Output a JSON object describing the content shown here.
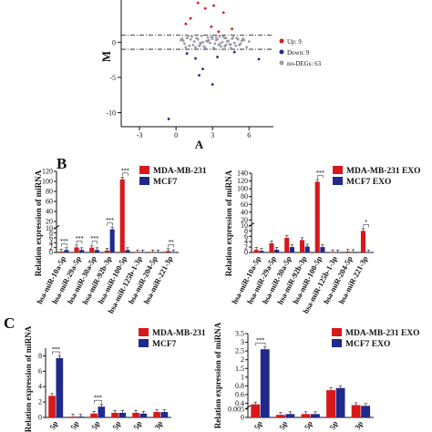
{
  "panel_letters": {
    "b": "B",
    "c": "C"
  },
  "colors": {
    "red": "#d7191c",
    "blue": "#1f2a8c",
    "gray": "#9a9aa8",
    "axis": "#111111"
  },
  "chart_data": [
    {
      "id": "ma",
      "type": "scatter",
      "xlabel": "A",
      "ylabel": "M",
      "xlim": [
        -4.5,
        8
      ],
      "ylim": [
        -12,
        6
      ],
      "xticks": [
        -3,
        0,
        3,
        6
      ],
      "yticks": [
        -10,
        -5,
        0
      ],
      "tick_labels_x": [
        "-3",
        "0",
        "3",
        "6"
      ],
      "tick_labels_y": [
        "-10",
        "-5",
        "0"
      ],
      "thresholds": [
        1,
        -1
      ],
      "legend": [
        "Up: 9",
        "Down: 9",
        "no-DEGs: 63"
      ],
      "series": [
        {
          "name": "Up: 9",
          "color": "#d7191c",
          "x": [
            1.8,
            2.4,
            3.1,
            3.9,
            1.2,
            0.8,
            2.9,
            4.6,
            3.5
          ],
          "y": [
            5.6,
            4.8,
            5.2,
            4.2,
            3.4,
            2.6,
            2.2,
            1.9,
            1.5
          ]
        },
        {
          "name": "Down: 9",
          "color": "#1f2a8c",
          "x": [
            0.9,
            1.6,
            2.2,
            3.4,
            4.8,
            6.8,
            1.9,
            3.0,
            -0.6
          ],
          "y": [
            -1.6,
            -2.3,
            -3.8,
            -2.1,
            -1.4,
            -2.4,
            -4.7,
            -6.0,
            -10.9
          ]
        },
        {
          "name": "no-DEGs: 63",
          "color": "#9a9aa8",
          "x": [
            0.4,
            0.7,
            0.9,
            1.1,
            1.3,
            1.5,
            1.6,
            1.8,
            2.0,
            2.1,
            2.3,
            2.5,
            2.6,
            2.8,
            3.0,
            3.1,
            3.3,
            3.5,
            3.6,
            3.8,
            4.0,
            4.1,
            4.3,
            4.5,
            4.7,
            4.9,
            5.1,
            5.3,
            5.5,
            5.8,
            6.0,
            0.6,
            1.0,
            1.4,
            1.7,
            2.2,
            2.4,
            2.7,
            2.9,
            3.2,
            3.4,
            3.7,
            3.9,
            4.2,
            4.4,
            4.6,
            4.8,
            5.0,
            5.2,
            5.6,
            0.8,
            1.2,
            1.9,
            2.6,
            3.0,
            3.6,
            4.0,
            4.5,
            5.4,
            0.5,
            2.0,
            3.3,
            4.1
          ],
          "y": [
            0.3,
            -0.2,
            0.6,
            -0.5,
            0.8,
            0.1,
            -0.7,
            0.4,
            -0.3,
            0.9,
            -0.6,
            0.2,
            0.7,
            -0.1,
            0.5,
            -0.8,
            0.3,
            -0.4,
            0.8,
            0.0,
            -0.6,
            0.6,
            0.2,
            -0.3,
            0.7,
            -0.5,
            0.4,
            -0.2,
            0.5,
            -0.7,
            0.1,
            0.2,
            0.9,
            -0.4,
            0.6,
            0.0,
            -0.8,
            0.3,
            0.7,
            -0.2,
            0.4,
            -0.6,
            0.8,
            0.1,
            -0.3,
            0.5,
            -0.1,
            0.6,
            -0.4,
            0.3,
            -0.7,
            0.4,
            -0.5,
            0.1,
            0.9,
            -0.2,
            0.6,
            -0.8,
            0.2,
            0.5,
            -0.1,
            0.7,
            -0.4
          ]
        }
      ]
    },
    {
      "id": "b_left",
      "type": "bar",
      "ylabel": "Relation expression of miRNA",
      "ylim": [
        0,
        120
      ],
      "yticks": [
        0,
        2,
        4,
        6,
        8,
        10,
        20,
        40,
        60,
        80,
        100,
        120
      ],
      "categories": [
        "hsa-miR-10a-5p",
        "hsa-miR-29a-5p",
        "hsa-miR-30a-5p",
        "hsa-miR-92b-3p",
        "hsa-miR-100-5p",
        "hsa-miR-125b-1-3p",
        "hsa-miR-204-5p",
        "hsa-miR-221-3p"
      ],
      "series": [
        {
          "name": "MDA-MB-231",
          "color": "#d7191c",
          "values": [
            0.4,
            2.1,
            2.0,
            0.8,
            104,
            0.05,
            0.05,
            0.6
          ]
        },
        {
          "name": "MCF7",
          "color": "#1f2a8c",
          "values": [
            1.0,
            1.0,
            1.0,
            9.5,
            1.0,
            0.05,
            0.05,
            0.05
          ]
        }
      ],
      "significance": [
        "***",
        "***",
        "***",
        "***",
        "***",
        "",
        "",
        "**"
      ]
    },
    {
      "id": "b_right",
      "type": "bar",
      "ylabel": "Relation expression of miRNA",
      "ylim": [
        0,
        140
      ],
      "yticks": [
        0,
        2,
        4,
        6,
        8,
        10,
        20,
        40,
        60,
        80,
        100,
        120,
        140
      ],
      "categories": [
        "hsa-miR-10a-5p",
        "hsa-miR-29a-5p",
        "hsa-miR-30a-5p",
        "hsa-miR-92b-3p",
        "hsa-miR-100-5p",
        "hsa-miR-125b-1-3p",
        "hsa-miR-204-5p",
        "hsa-miR-221-3p"
      ],
      "series": [
        {
          "name": "MDA-MB-231 EXO",
          "color": "#d7191c",
          "values": [
            1.0,
            3.4,
            5.4,
            4.6,
            118,
            0.1,
            0.3,
            8.0
          ]
        },
        {
          "name": "MCF7 EXO",
          "color": "#1f2a8c",
          "values": [
            0.6,
            1.0,
            2.0,
            2.2,
            2.0,
            0.1,
            0.2,
            0.1
          ]
        }
      ],
      "significance": [
        "",
        "",
        "",
        "",
        "***",
        "",
        "",
        "*"
      ]
    },
    {
      "id": "c_left",
      "type": "bar",
      "ylabel": "Relation expression of miRNA",
      "ylim": [
        0,
        9
      ],
      "yticks": [
        0,
        2,
        4,
        6,
        8
      ],
      "categories": [
        "5p",
        "5p",
        "5p",
        "5p",
        "5p",
        "3p"
      ],
      "series": [
        {
          "name": "MDA-MB-231",
          "color": "#d7191c",
          "values": [
            2.8,
            0.1,
            0.5,
            0.6,
            0.6,
            0.7
          ]
        },
        {
          "name": "MCF7",
          "color": "#1f2a8c",
          "values": [
            7.7,
            0.1,
            1.4,
            0.6,
            0.5,
            0.7
          ]
        }
      ],
      "significance": [
        "***",
        "",
        "***",
        "",
        "",
        ""
      ]
    },
    {
      "id": "c_right",
      "type": "bar",
      "ylabel": "Relation expression of miRNA",
      "yticks": [
        0,
        0.005,
        0.4,
        0.6,
        0.8,
        1.0,
        1.5,
        2.0,
        2.5,
        3.0,
        3.5
      ],
      "categories": [
        "5p",
        "5p",
        "5p",
        "5p",
        "3p"
      ],
      "series": [
        {
          "name": "MDA-MB-231 EXO",
          "color": "#d7191c",
          "values": [
            0.32,
            0.0015,
            0.002,
            0.7,
            0.27
          ]
        },
        {
          "name": "MCF7 EXO",
          "color": "#1f2a8c",
          "values": [
            2.6,
            0.002,
            0.002,
            0.75,
            0.22
          ]
        }
      ],
      "significance": [
        "***",
        "",
        "",
        "",
        ""
      ]
    }
  ]
}
